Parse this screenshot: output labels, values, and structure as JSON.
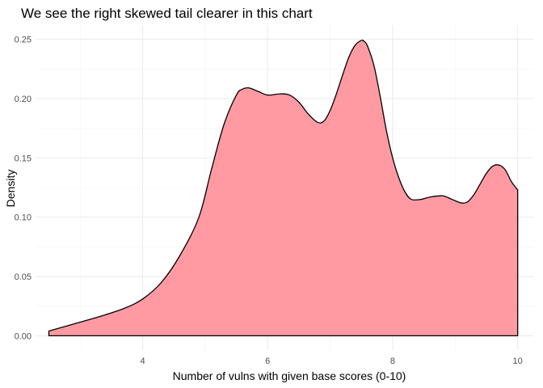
{
  "chart_data": {
    "type": "area",
    "title": "We see the right skewed tail clearer in this chart",
    "xlabel": "Number of vulns with given base scores (0-10)",
    "ylabel": "Density",
    "xlim": [
      2.3,
      10.25
    ],
    "ylim": [
      -0.012,
      0.262
    ],
    "x_ticks": [
      4,
      6,
      8,
      10
    ],
    "x_tick_labels": [
      "4",
      "6",
      "8",
      "10"
    ],
    "y_ticks": [
      0,
      0.05,
      0.1,
      0.15,
      0.2,
      0.25
    ],
    "y_tick_labels": [
      "0.00",
      "0.05",
      "0.10",
      "0.15",
      "0.20",
      "0.25"
    ],
    "grid": true,
    "fill_color": "#ff9aa2",
    "line_color": "#000000",
    "series": [
      {
        "x": [
          2.5,
          2.9,
          3.3,
          3.7,
          4.0,
          4.3,
          4.6,
          4.9,
          5.1,
          5.3,
          5.5,
          5.6,
          5.7,
          5.85,
          6.0,
          6.2,
          6.35,
          6.5,
          6.65,
          6.8,
          6.9,
          7.0,
          7.1,
          7.2,
          7.3,
          7.4,
          7.5,
          7.55,
          7.6,
          7.7,
          7.8,
          7.9,
          8.0,
          8.1,
          8.2,
          8.3,
          8.45,
          8.6,
          8.8,
          8.95,
          9.1,
          9.2,
          9.3,
          9.4,
          9.5,
          9.6,
          9.7,
          9.8,
          9.9,
          10.0
        ],
        "y": [
          0.004,
          0.01,
          0.016,
          0.023,
          0.031,
          0.045,
          0.068,
          0.1,
          0.14,
          0.178,
          0.203,
          0.208,
          0.209,
          0.206,
          0.203,
          0.204,
          0.203,
          0.197,
          0.187,
          0.18,
          0.181,
          0.19,
          0.204,
          0.22,
          0.235,
          0.245,
          0.249,
          0.248,
          0.244,
          0.228,
          0.202,
          0.173,
          0.15,
          0.133,
          0.121,
          0.115,
          0.115,
          0.117,
          0.118,
          0.115,
          0.112,
          0.113,
          0.119,
          0.128,
          0.137,
          0.143,
          0.144,
          0.14,
          0.13,
          0.123
        ]
      }
    ]
  }
}
